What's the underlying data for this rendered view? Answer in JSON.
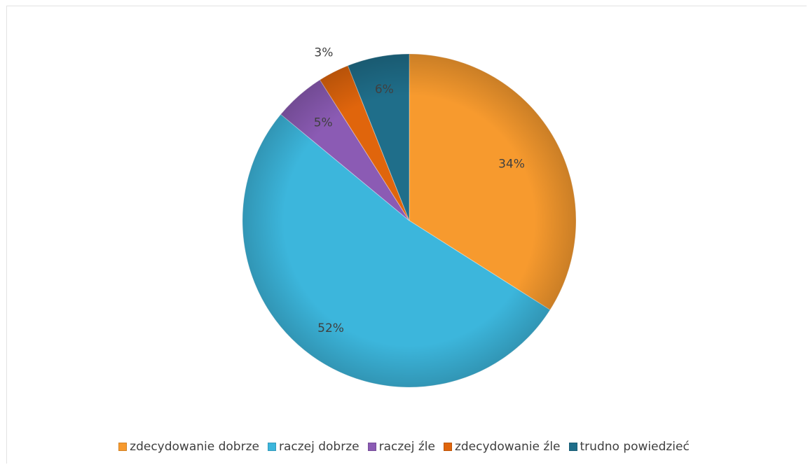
{
  "chart_data": {
    "type": "pie",
    "categories": [
      "zdecydowanie dobrze",
      "raczej dobrze",
      "raczej źle",
      "zdecydowanie źle",
      "trudno powiedzieć"
    ],
    "values": [
      34,
      52,
      5,
      3,
      6
    ],
    "value_labels": [
      "34%",
      "52%",
      "5%",
      "3%",
      "6%"
    ],
    "colors": [
      "#f79a2e",
      "#3cb6dc",
      "#8b5bb4",
      "#e0650c",
      "#1f6e8a"
    ],
    "start_angle_deg": 0,
    "direction": "clockwise",
    "legend_position": "bottom"
  }
}
